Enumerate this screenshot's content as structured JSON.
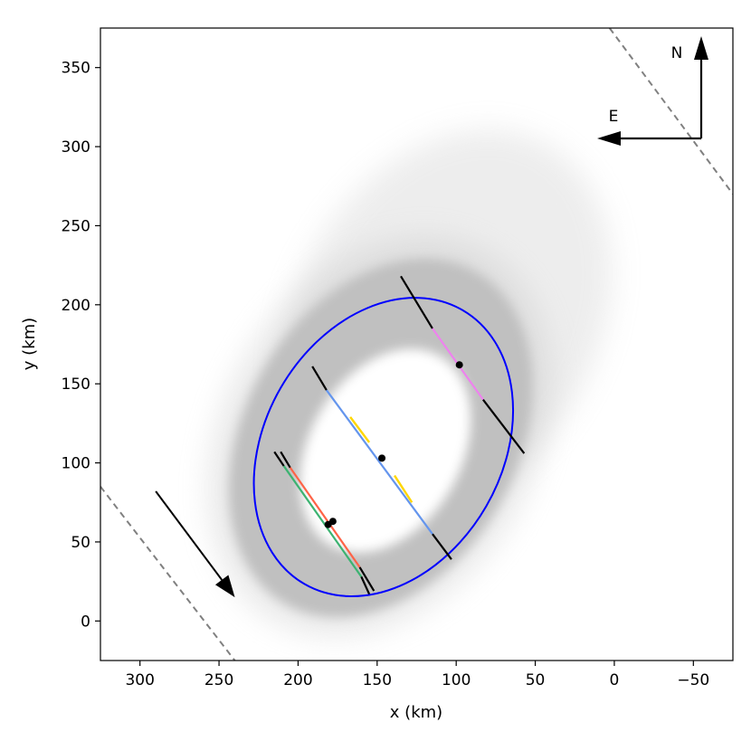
{
  "chart_data": {
    "type": "scatter",
    "xlabel": "x (km)",
    "ylabel": "y (km)",
    "xlim": [
      325,
      -75
    ],
    "ylim": [
      -25,
      375
    ],
    "xticks": [
      300,
      250,
      200,
      150,
      100,
      50,
      0,
      -50
    ],
    "xtick_labels": [
      "300",
      "250",
      "200",
      "150",
      "100",
      "50",
      "0",
      "−50"
    ],
    "yticks": [
      0,
      50,
      100,
      150,
      200,
      250,
      300,
      350
    ],
    "ytick_labels": [
      "0",
      "50",
      "100",
      "150",
      "200",
      "250",
      "300",
      "350"
    ],
    "grid": false,
    "compass": {
      "north_label": "N",
      "east_label": "E"
    },
    "fitted_ellipse": {
      "center": [
        146,
        110
      ],
      "semi_major": 100,
      "semi_minor": 75,
      "rotation_deg": 60,
      "color": "#0000ff"
    },
    "chords": [
      {
        "segments": [
          {
            "from": [
              135,
              218
            ],
            "to": [
              115,
              185
            ],
            "color": "#000000"
          },
          {
            "from": [
              115,
              185
            ],
            "to": [
              83,
              140
            ],
            "color": "#ee82ee"
          },
          {
            "from": [
              83,
              140
            ],
            "to": [
              57,
              106
            ],
            "color": "#000000"
          }
        ],
        "marker": [
          98,
          162
        ]
      },
      {
        "segments": [
          {
            "from": [
              191,
              161
            ],
            "to": [
              182,
              146
            ],
            "color": "#000000"
          },
          {
            "from": [
              182,
              146
            ],
            "to": [
              115,
              55
            ],
            "color": "#6495ed"
          },
          {
            "from": [
              115,
              55
            ],
            "to": [
              103,
              39
            ],
            "color": "#000000"
          }
        ],
        "yellow_ticks": [
          [
            167,
            129
          ],
          [
            155,
            113
          ],
          [
            139,
            92
          ],
          [
            128,
            75
          ]
        ],
        "marker": [
          147,
          103
        ]
      },
      {
        "segments": [
          {
            "from": [
              211,
              107
            ],
            "to": [
              205,
              97
            ],
            "color": "#000000"
          },
          {
            "from": [
              205,
              97
            ],
            "to": [
              161,
              34
            ],
            "color": "#ff6347"
          },
          {
            "from": [
              161,
              34
            ],
            "to": [
              152,
              19
            ],
            "color": "#000000"
          }
        ],
        "marker": [
          178,
          63
        ]
      },
      {
        "segments": [
          {
            "from": [
              215,
              107
            ],
            "to": [
              209,
              98
            ],
            "color": "#000000"
          },
          {
            "from": [
              209,
              98
            ],
            "to": [
              160,
              28
            ],
            "color": "#3cb371"
          },
          {
            "from": [
              160,
              28
            ],
            "to": [
              155,
              17
            ],
            "color": "#000000"
          }
        ],
        "marker": [
          181,
          61
        ]
      }
    ],
    "motion_arrow": {
      "from": [
        290,
        82
      ],
      "to": [
        240,
        15
      ],
      "color": "#000000"
    },
    "shadow_limits": [
      {
        "from": [
          325,
          85
        ],
        "to": [
          240,
          -25
        ],
        "color": "#808080"
      },
      {
        "from": [
          3,
          375
        ],
        "to": [
          -75,
          270
        ],
        "color": "#808080"
      }
    ],
    "envelope_color": "#c0c0c0"
  }
}
